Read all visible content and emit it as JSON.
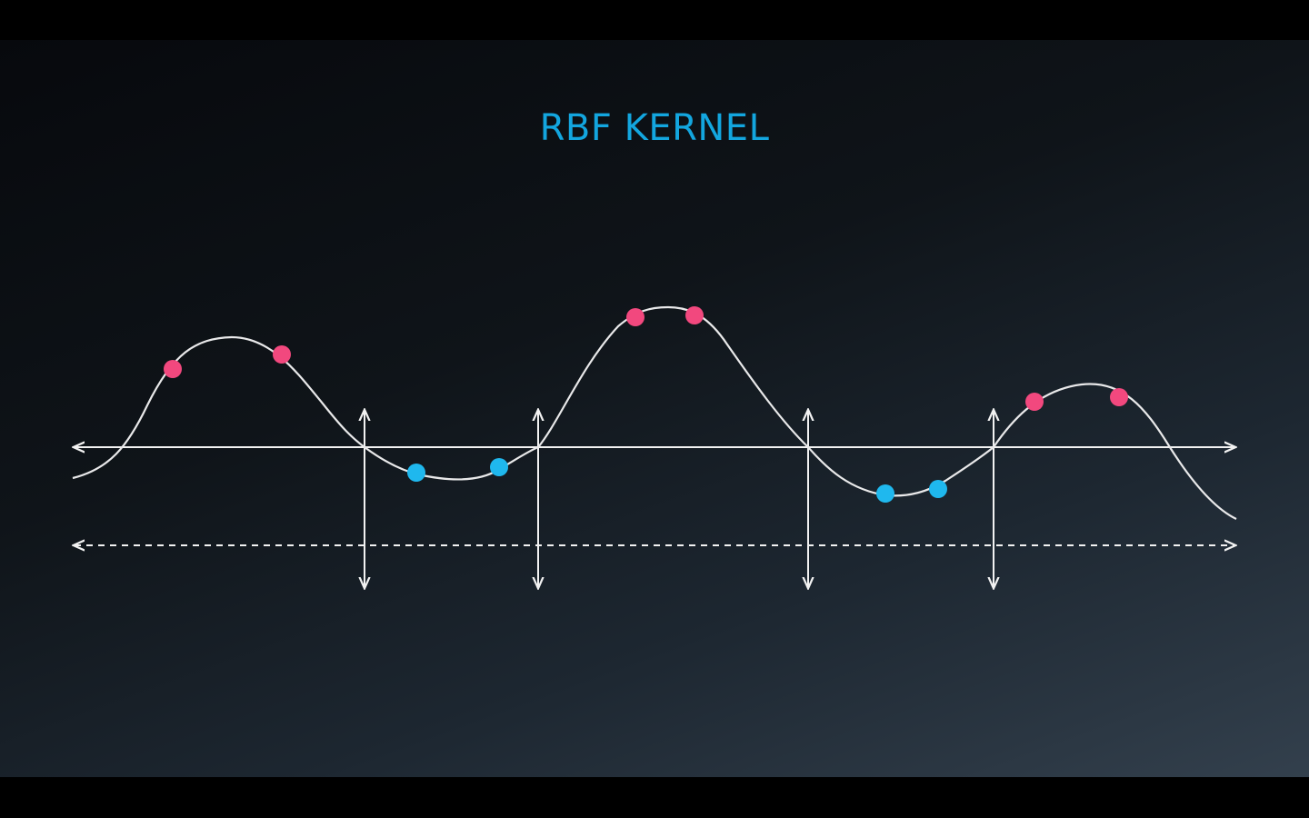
{
  "slide": {
    "title": "RBF KERNEL"
  },
  "colors": {
    "title": "#13a6df",
    "curve": "#e9e9ea",
    "axis": "#f2f2f2",
    "positive": "#f2487e",
    "negative": "#1fb8ee"
  },
  "diagram": {
    "curve_shape": "smooth wave crossing the horizontal axis, three peaks above and two troughs below",
    "red_points": 6,
    "blue_points": 4,
    "vertical_boundaries": 4,
    "lower_axis_style": "dashed"
  }
}
